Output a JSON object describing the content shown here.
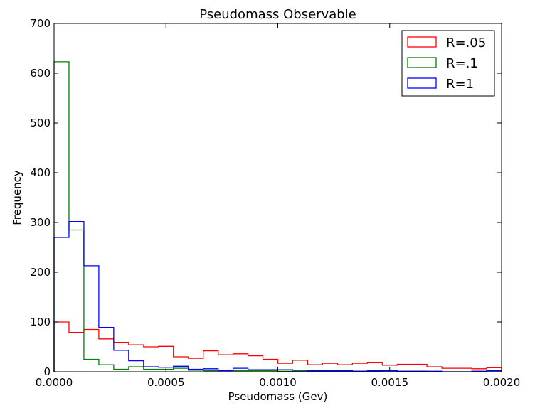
{
  "chart_data": {
    "type": "histogram",
    "title": "Pseudomass Observable",
    "xlabel": "Pseudomass (Gev)",
    "ylabel": "Frequency",
    "xlim": [
      0,
      0.002
    ],
    "ylim": [
      0,
      700
    ],
    "xticks": [
      "0.0000",
      "0.0005",
      "0.0010",
      "0.0015",
      "0.0020"
    ],
    "yticks": [
      "0",
      "100",
      "200",
      "300",
      "400",
      "500",
      "600",
      "700"
    ],
    "grid": false,
    "legend_position": "top-right",
    "bin_width": 6.67e-05,
    "series": [
      {
        "name": "R=.05",
        "color": "#ff0000",
        "values": [
          100,
          79,
          85,
          66,
          59,
          54,
          50,
          51,
          30,
          27,
          42,
          34,
          36,
          32,
          25,
          17,
          23,
          14,
          17,
          14,
          17,
          19,
          13,
          15,
          15,
          10,
          7,
          7,
          6,
          8
        ]
      },
      {
        "name": "R=.1",
        "color": "#008000",
        "values": [
          623,
          285,
          25,
          14,
          5,
          10,
          5,
          5,
          7,
          3,
          2,
          3,
          2,
          2,
          2,
          1,
          1,
          1,
          1,
          1,
          1,
          1,
          2,
          1,
          1,
          0,
          0,
          0,
          0,
          0
        ]
      },
      {
        "name": "R=1",
        "color": "#0000ff",
        "values": [
          270,
          302,
          213,
          89,
          43,
          22,
          10,
          9,
          11,
          5,
          6,
          2,
          7,
          4,
          4,
          4,
          3,
          2,
          2,
          2,
          1,
          2,
          2,
          1,
          1,
          1,
          0,
          0,
          1,
          2
        ]
      }
    ]
  }
}
